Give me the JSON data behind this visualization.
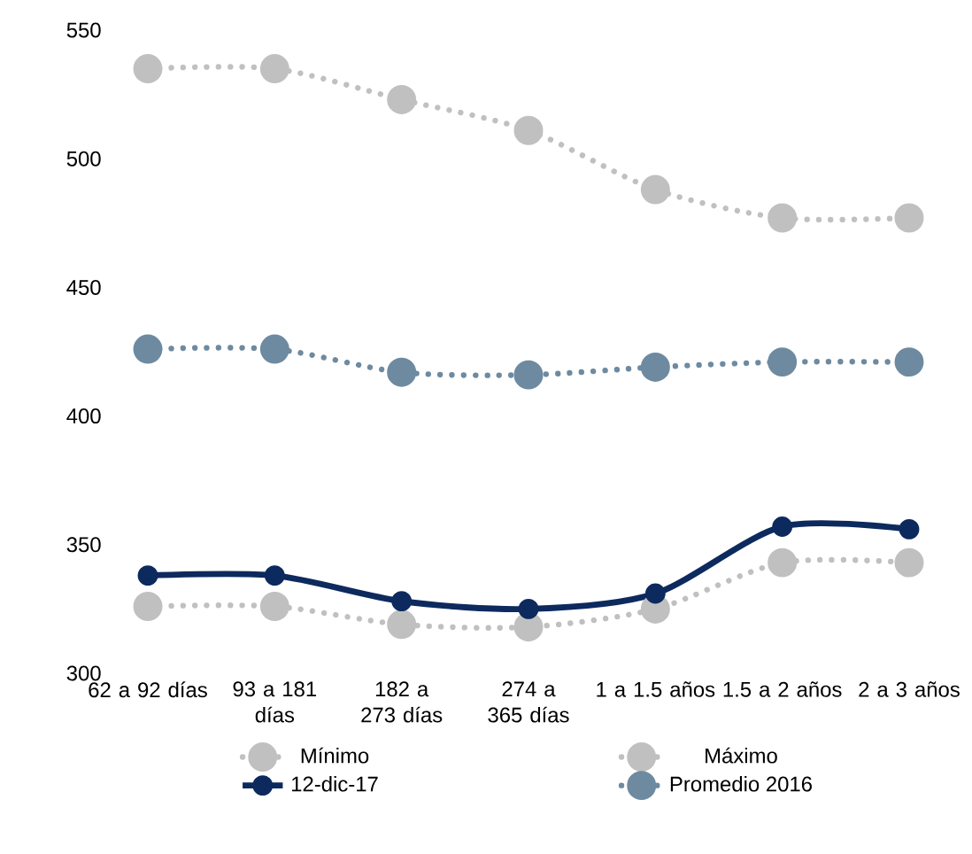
{
  "chart_data": {
    "type": "line",
    "categories": [
      "62 a 92 días",
      "93 a 181 días",
      "182 a 273 días",
      "274 a 365 días",
      "1 a 1.5 años",
      "1.5 a 2 años",
      "2 a 3 años"
    ],
    "series": [
      {
        "name": "Mínimo",
        "color": "#c0c0c0",
        "line_style": "dotted",
        "values": [
          326,
          326,
          319,
          318,
          325,
          343,
          343
        ]
      },
      {
        "name": "Máximo",
        "color": "#c0c0c0",
        "line_style": "dotted",
        "values": [
          535,
          535,
          523,
          511,
          488,
          477,
          477
        ]
      },
      {
        "name": "12-dic-17",
        "color": "#0d2a5e",
        "line_style": "solid",
        "values": [
          338,
          338,
          328,
          325,
          331,
          357,
          356
        ]
      },
      {
        "name": "Promedio 2016",
        "color": "#6e8aa0",
        "line_style": "dotted",
        "values": [
          426,
          426,
          417,
          416,
          419,
          421,
          421
        ]
      }
    ],
    "ylim": [
      300,
      550
    ],
    "yticks": [
      300,
      350,
      400,
      450,
      500,
      550
    ],
    "grid": false,
    "legend": "bottom",
    "marker": "circle"
  }
}
